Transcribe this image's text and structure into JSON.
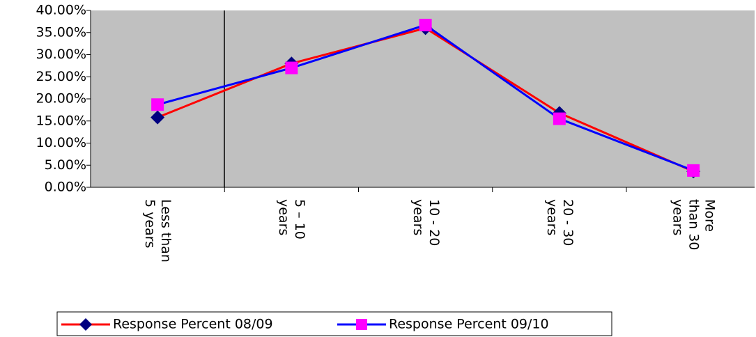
{
  "chart_data": {
    "type": "line",
    "categories": [
      "Less than 5 years",
      "5 – 10 years",
      "10 - 20 years",
      "20 - 30 years",
      "More than 30 years"
    ],
    "series": [
      {
        "name": "Response Percent 08/09",
        "color": "#ff0000",
        "marker_color": "#000080",
        "marker": "diamond",
        "values": [
          15.8,
          28,
          36,
          16.8,
          3.6
        ]
      },
      {
        "name": "Response Percent 09/10",
        "color": "#0000ff",
        "marker_color": "#ff00ff",
        "marker": "square",
        "values": [
          18.7,
          27,
          36.7,
          15.5,
          3.8
        ]
      }
    ],
    "ylim": [
      0,
      40
    ],
    "yticks": [
      {
        "value": 0,
        "label": "0.00%"
      },
      {
        "value": 5,
        "label": "5.00%"
      },
      {
        "value": 10,
        "label": "10.00%"
      },
      {
        "value": 15,
        "label": "15.00%"
      },
      {
        "value": 20,
        "label": "20.00%"
      },
      {
        "value": 25,
        "label": "25.00%"
      },
      {
        "value": 30,
        "label": "30.00%"
      },
      {
        "value": 35,
        "label": "35.00%"
      },
      {
        "value": 40,
        "label": "40.00%"
      }
    ],
    "grid": false,
    "legend": "bottom"
  }
}
